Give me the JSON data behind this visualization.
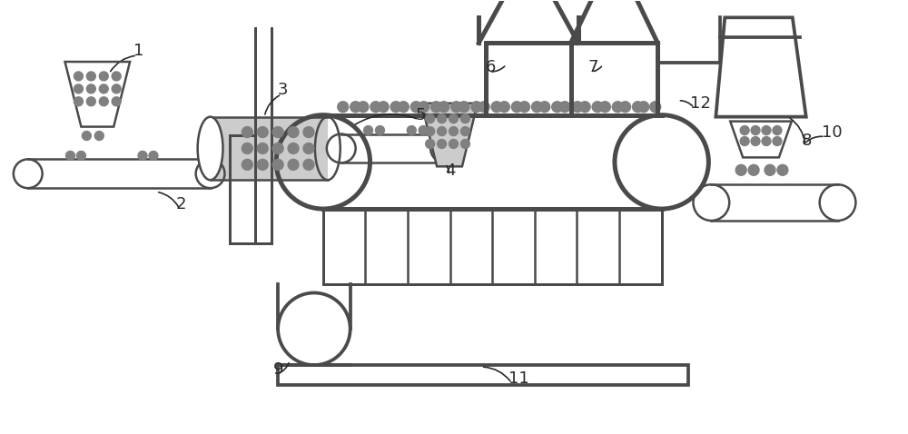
{
  "bg_color": "#ffffff",
  "lc": "#4a4a4a",
  "gc": "#aaaaaa",
  "dc": "#808080",
  "lw": 1.8,
  "figsize": [
    10.0,
    4.78
  ],
  "dpi": 100
}
